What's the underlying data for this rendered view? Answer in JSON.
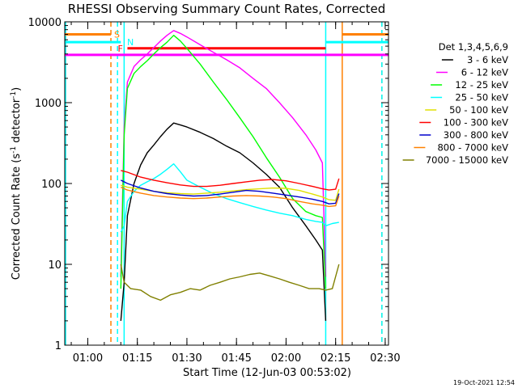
{
  "chart_data": {
    "type": "line",
    "title": "RHESSI Observing Summary Count Rates, Corrected",
    "xlabel": "Start Time (12-Jun-03 00:53:02)",
    "ylabel_pre": "Corrected Count Rate (s",
    "ylabel_sup1": "-1",
    "ylabel_mid": " detector",
    "ylabel_sup2": "-1",
    "ylabel_post": ")",
    "date_stamp": "19-Oct-2021 12:54",
    "y_scale": "log",
    "ylim": [
      1,
      10000
    ],
    "xlim": [
      "00:53:02",
      "02:31:00"
    ],
    "x_ticks": [
      "01:00",
      "01:15",
      "01:30",
      "01:45",
      "02:00",
      "02:15",
      "02:30"
    ],
    "y_ticks": [
      "1",
      "10",
      "100",
      "1000",
      "10000"
    ],
    "legend_title": "Det 1,3,4,5,6,9",
    "legend_position": "right",
    "series": [
      {
        "name": "3 - 6 keV",
        "color": "#000000",
        "x": [
          "01:10",
          "01:11",
          "01:12",
          "01:14",
          "01:16",
          "01:18",
          "01:20",
          "01:22",
          "01:24",
          "01:26",
          "01:28",
          "01:30",
          "01:34",
          "01:38",
          "01:42",
          "01:46",
          "01:50",
          "01:54",
          "01:58",
          "02:02",
          "02:06",
          "02:09",
          "02:11",
          "02:12"
        ],
        "y": [
          2,
          6,
          40,
          100,
          170,
          240,
          300,
          380,
          470,
          560,
          530,
          500,
          430,
          360,
          290,
          240,
          180,
          130,
          90,
          50,
          30,
          20,
          15,
          2
        ]
      },
      {
        "name": "6 - 12 keV",
        "color": "#ff00ff",
        "x": [
          "01:10",
          "01:11",
          "01:12",
          "01:14",
          "01:16",
          "01:18",
          "01:20",
          "01:22",
          "01:24",
          "01:26",
          "01:28",
          "01:30",
          "01:34",
          "01:38",
          "01:42",
          "01:46",
          "01:50",
          "01:54",
          "01:58",
          "02:02",
          "02:06",
          "02:09",
          "02:11",
          "02:12"
        ],
        "y": [
          7,
          500,
          1800,
          2800,
          3400,
          4000,
          4800,
          5800,
          6800,
          7800,
          7200,
          6500,
          5200,
          4200,
          3400,
          2700,
          2000,
          1500,
          1000,
          650,
          400,
          260,
          180,
          7
        ]
      },
      {
        "name": "12 - 25 keV",
        "color": "#00ff00",
        "x": [
          "01:10",
          "01:11",
          "01:12",
          "01:14",
          "01:16",
          "01:18",
          "01:20",
          "01:22",
          "01:24",
          "01:26",
          "01:28",
          "01:30",
          "01:34",
          "01:38",
          "01:42",
          "01:46",
          "01:50",
          "01:54",
          "01:58",
          "02:02",
          "02:06",
          "02:09",
          "02:11",
          "02:12"
        ],
        "y": [
          5,
          400,
          1500,
          2300,
          2800,
          3300,
          4000,
          4800,
          5600,
          6800,
          5800,
          4700,
          3000,
          1800,
          1100,
          650,
          380,
          210,
          120,
          65,
          45,
          40,
          38,
          5
        ]
      },
      {
        "name": "25 - 50 keV",
        "color": "#00ffff",
        "x": [
          "01:10",
          "01:11",
          "01:12",
          "01:14",
          "01:16",
          "01:18",
          "01:20",
          "01:22",
          "01:24",
          "01:26",
          "01:28",
          "01:30",
          "01:34",
          "01:38",
          "01:42",
          "01:46",
          "01:50",
          "01:54",
          "01:58",
          "02:02",
          "02:06",
          "02:09",
          "02:11",
          "02:12",
          "02:14",
          "02:16"
        ],
        "y": [
          25,
          30,
          60,
          80,
          95,
          105,
          115,
          130,
          150,
          175,
          140,
          110,
          90,
          75,
          65,
          58,
          52,
          47,
          43,
          40,
          36,
          34,
          33,
          30,
          32,
          33
        ]
      },
      {
        "name": "50 - 100 keV",
        "color": "#e0e000",
        "x": [
          "01:10",
          "01:12",
          "01:16",
          "01:20",
          "01:24",
          "01:28",
          "01:32",
          "01:36",
          "01:40",
          "01:44",
          "01:48",
          "01:52",
          "01:56",
          "02:00",
          "02:04",
          "02:08",
          "02:11",
          "02:13",
          "02:15",
          "02:16"
        ],
        "y": [
          95,
          90,
          85,
          80,
          77,
          75,
          74,
          76,
          78,
          81,
          84,
          86,
          88,
          87,
          82,
          74,
          68,
          63,
          62,
          85
        ]
      },
      {
        "name": "100 - 300 keV",
        "color": "#ff0000",
        "x": [
          "01:10",
          "01:12",
          "01:16",
          "01:20",
          "01:24",
          "01:28",
          "01:32",
          "01:36",
          "01:40",
          "01:44",
          "01:48",
          "01:52",
          "01:56",
          "02:00",
          "02:04",
          "02:08",
          "02:11",
          "02:13",
          "02:15",
          "02:16"
        ],
        "y": [
          145,
          138,
          120,
          110,
          102,
          96,
          92,
          92,
          95,
          100,
          105,
          110,
          112,
          108,
          100,
          92,
          86,
          83,
          85,
          115
        ]
      },
      {
        "name": "300 - 800 keV",
        "color": "#0000cc",
        "x": [
          "01:10",
          "01:12",
          "01:16",
          "01:20",
          "01:24",
          "01:28",
          "01:32",
          "01:36",
          "01:40",
          "01:44",
          "01:48",
          "01:52",
          "01:56",
          "02:00",
          "02:04",
          "02:08",
          "02:11",
          "02:13",
          "02:15",
          "02:16"
        ],
        "y": [
          110,
          100,
          88,
          80,
          75,
          72,
          70,
          71,
          74,
          78,
          82,
          80,
          76,
          72,
          68,
          64,
          60,
          56,
          57,
          75
        ]
      },
      {
        "name": "800 - 7000 keV",
        "color": "#ff8000",
        "x": [
          "01:10",
          "01:12",
          "01:16",
          "01:20",
          "01:24",
          "01:28",
          "01:32",
          "01:36",
          "01:40",
          "01:44",
          "01:48",
          "01:52",
          "01:56",
          "02:00",
          "02:04",
          "02:08",
          "02:11",
          "02:13",
          "02:15",
          "02:16"
        ],
        "y": [
          90,
          83,
          76,
          71,
          68,
          66,
          65,
          66,
          68,
          70,
          71,
          70,
          68,
          65,
          60,
          56,
          54,
          52,
          53,
          70
        ]
      },
      {
        "name": "7000 - 15000 keV",
        "color": "#808000",
        "x": [
          "01:10",
          "01:11",
          "01:13",
          "01:16",
          "01:19",
          "01:22",
          "01:25",
          "01:28",
          "01:31",
          "01:34",
          "01:37",
          "01:40",
          "01:43",
          "01:46",
          "01:49",
          "01:52",
          "01:55",
          "01:58",
          "02:01",
          "02:04",
          "02:07",
          "02:10",
          "02:12",
          "02:14",
          "02:16"
        ],
        "y": [
          10,
          6,
          5,
          4.8,
          4,
          3.6,
          4.2,
          4.5,
          5,
          4.8,
          5.5,
          6,
          6.6,
          7,
          7.5,
          7.8,
          7.2,
          6.6,
          6,
          5.5,
          5,
          5,
          4.8,
          5,
          10
        ]
      }
    ],
    "flag_bars": [
      {
        "label": "S",
        "color": "#ff8000",
        "segments": [
          [
            "00:53:02",
            "01:07"
          ],
          [
            "02:17",
            "02:31"
          ]
        ],
        "y": 7000
      },
      {
        "label": "N",
        "color": "#00ffff",
        "segments": [
          [
            "00:53:02",
            "01:10"
          ],
          [
            "02:12",
            "02:31"
          ]
        ],
        "y": 5600
      },
      {
        "label": "F",
        "color": "#ff0000",
        "segments": [
          [
            "01:12",
            "02:12"
          ]
        ],
        "y": 4700
      },
      {
        "label": "",
        "color": "#ff00ff",
        "segments": [
          [
            "00:53:02",
            "02:31"
          ]
        ],
        "y": 3900
      }
    ],
    "vertical_markers": [
      {
        "color": "#00ffff",
        "style": "solid",
        "x": "00:53:02"
      },
      {
        "color": "#ff8000",
        "style": "dashed",
        "x": "01:07"
      },
      {
        "color": "#00ffff",
        "style": "dashed",
        "x": "01:09"
      },
      {
        "color": "#00ffff",
        "style": "solid",
        "x": "01:11"
      },
      {
        "color": "#00ffff",
        "style": "solid",
        "x": "02:12"
      },
      {
        "color": "#ff8000",
        "style": "solid",
        "x": "02:17"
      },
      {
        "color": "#ff8000",
        "style": "dashed",
        "x": "02:29"
      },
      {
        "color": "#00ffff",
        "style": "dashed",
        "x": "02:29"
      }
    ]
  }
}
